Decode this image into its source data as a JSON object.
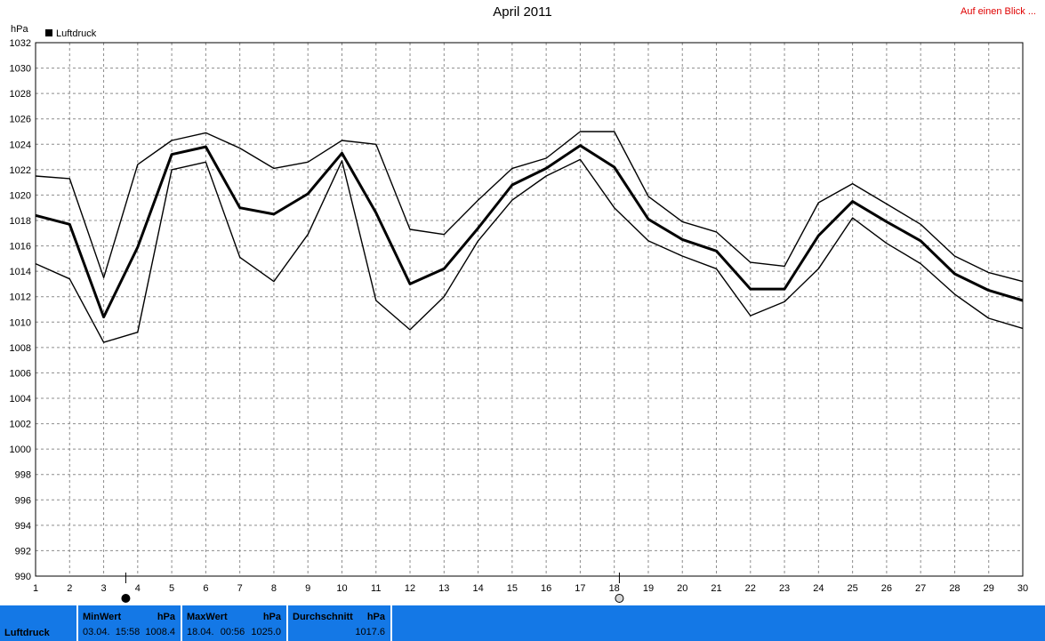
{
  "header": {
    "title": "April 2011",
    "overview_link": "Auf einen Blick ..."
  },
  "chart_data": {
    "type": "line",
    "title": "April 2011",
    "ylabel": "hPa",
    "legend": {
      "label": "Luftdruck",
      "placement": "top-left"
    },
    "grid": true,
    "ylim": [
      990,
      1032
    ],
    "yticks": [
      990,
      992,
      994,
      996,
      998,
      1000,
      1002,
      1004,
      1006,
      1008,
      1010,
      1012,
      1014,
      1016,
      1018,
      1020,
      1022,
      1024,
      1026,
      1028,
      1030,
      1032
    ],
    "x": [
      1,
      2,
      3,
      4,
      5,
      6,
      7,
      8,
      9,
      10,
      11,
      12,
      13,
      14,
      15,
      16,
      17,
      18,
      19,
      20,
      21,
      22,
      23,
      24,
      25,
      26,
      27,
      28,
      29,
      30
    ],
    "series": [
      {
        "role": "max",
        "values": [
          1021.5,
          1021.3,
          1013.5,
          1022.4,
          1024.3,
          1024.9,
          1023.7,
          1022.1,
          1022.6,
          1024.3,
          1024.0,
          1017.3,
          1016.9,
          1019.6,
          1022.1,
          1022.9,
          1025.0,
          1025.0,
          1019.9,
          1017.9,
          1017.1,
          1014.7,
          1014.4,
          1019.4,
          1020.9,
          1019.3,
          1017.7,
          1015.2,
          1013.9,
          1013.2
        ]
      },
      {
        "role": "mean",
        "values": [
          1018.4,
          1017.7,
          1010.4,
          1015.9,
          1023.2,
          1023.8,
          1019.0,
          1018.5,
          1020.1,
          1023.3,
          1018.6,
          1013.0,
          1014.2,
          1017.4,
          1020.8,
          1022.1,
          1023.9,
          1022.2,
          1018.1,
          1016.5,
          1015.6,
          1012.6,
          1012.6,
          1016.8,
          1019.5,
          1017.9,
          1016.4,
          1013.8,
          1012.5,
          1011.7
        ]
      },
      {
        "role": "min",
        "values": [
          1014.6,
          1013.4,
          1008.4,
          1009.2,
          1022.0,
          1022.6,
          1015.1,
          1013.2,
          1016.9,
          1022.7,
          1011.7,
          1009.4,
          1012.0,
          1016.4,
          1019.6,
          1021.5,
          1022.8,
          1019.0,
          1016.4,
          1015.2,
          1014.2,
          1010.5,
          1011.6,
          1014.2,
          1018.2,
          1016.2,
          1014.6,
          1012.2,
          1010.3,
          1009.5
        ]
      }
    ],
    "markers": [
      {
        "x": 3.65,
        "kind": "filled"
      },
      {
        "x": 18.15,
        "kind": "open"
      }
    ]
  },
  "footer": {
    "name": "Luftdruck",
    "min": {
      "label": "MinWert",
      "unit": "hPa",
      "date": "03.04.",
      "time": "15:58",
      "value": "1008.4"
    },
    "max": {
      "label": "MaxWert",
      "unit": "hPa",
      "date": "18.04.",
      "time": "00:56",
      "value": "1025.0"
    },
    "avg": {
      "label": "Durchschnitt",
      "unit": "hPa",
      "value": "1017.6"
    }
  },
  "colors": {
    "footer_bg": "#1478e6",
    "grid": "#8c8c8c",
    "line": "#000000",
    "link": "#e00000"
  }
}
